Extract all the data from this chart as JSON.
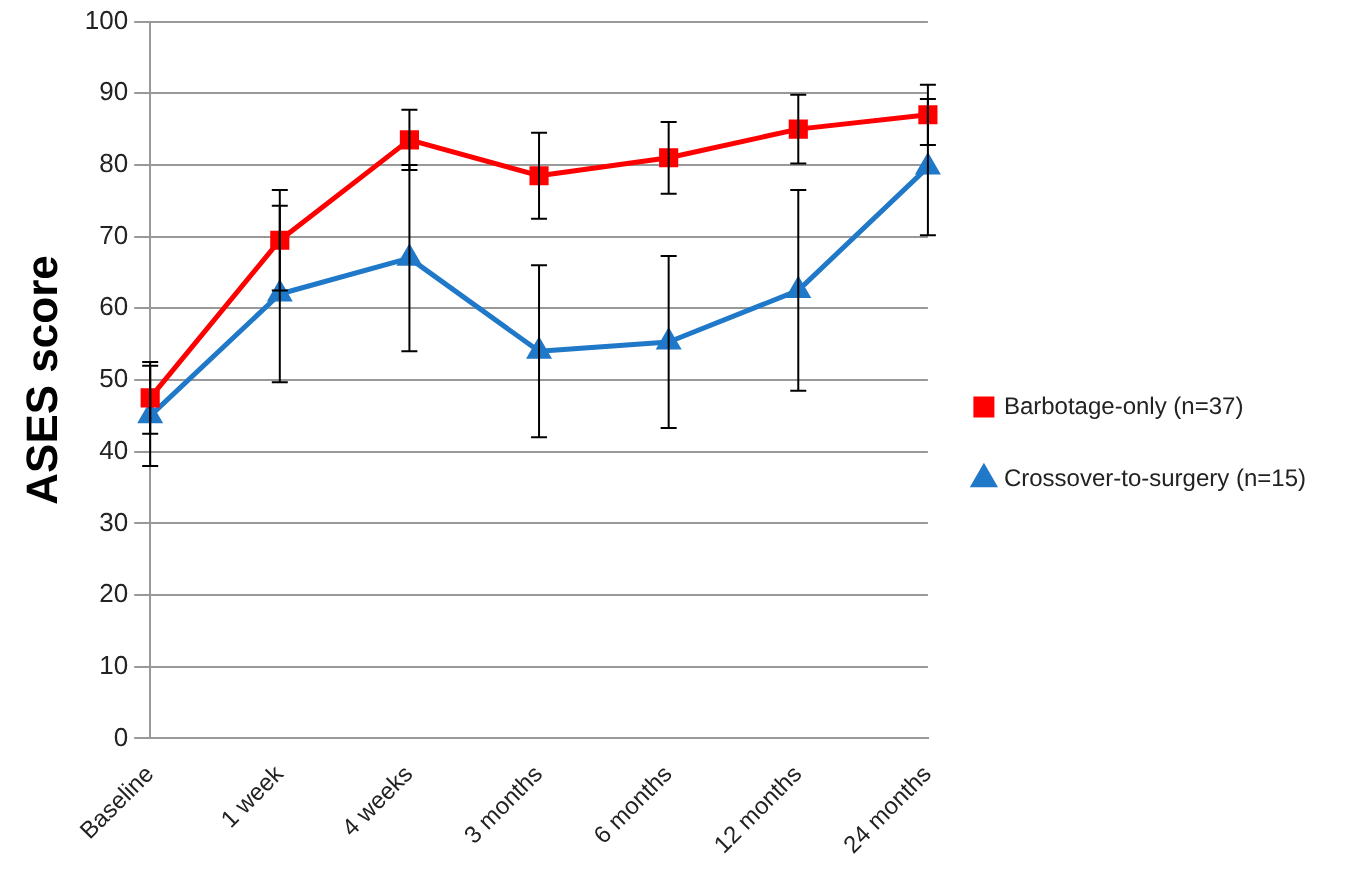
{
  "chart_data": {
    "type": "line",
    "ylabel": "ASES score",
    "categories": [
      "Baseline",
      "1 week",
      "4 weeks",
      "3 months",
      "6 months",
      "12 months",
      "24 months"
    ],
    "series": [
      {
        "name": "Barbotage-only (n=37)",
        "color": "#ff0000",
        "marker": "square",
        "values": [
          47.5,
          69.5,
          83.5,
          78.5,
          81,
          85,
          87
        ],
        "errors": [
          5,
          7,
          4.2,
          6,
          5,
          4.8,
          4.2
        ]
      },
      {
        "name": "Crossover-to-surgery (n=15)",
        "color": "#1f78c8",
        "marker": "triangle",
        "values": [
          45,
          62,
          67,
          54,
          55.3,
          62.5,
          79.7
        ],
        "errors": [
          7,
          12.3,
          13,
          12,
          12,
          14,
          9.5
        ]
      }
    ],
    "ylim": [
      0,
      100
    ],
    "yticks": [
      0,
      10,
      20,
      30,
      40,
      50,
      60,
      70,
      80,
      90,
      100
    ],
    "grid": "y",
    "legend": "right"
  }
}
